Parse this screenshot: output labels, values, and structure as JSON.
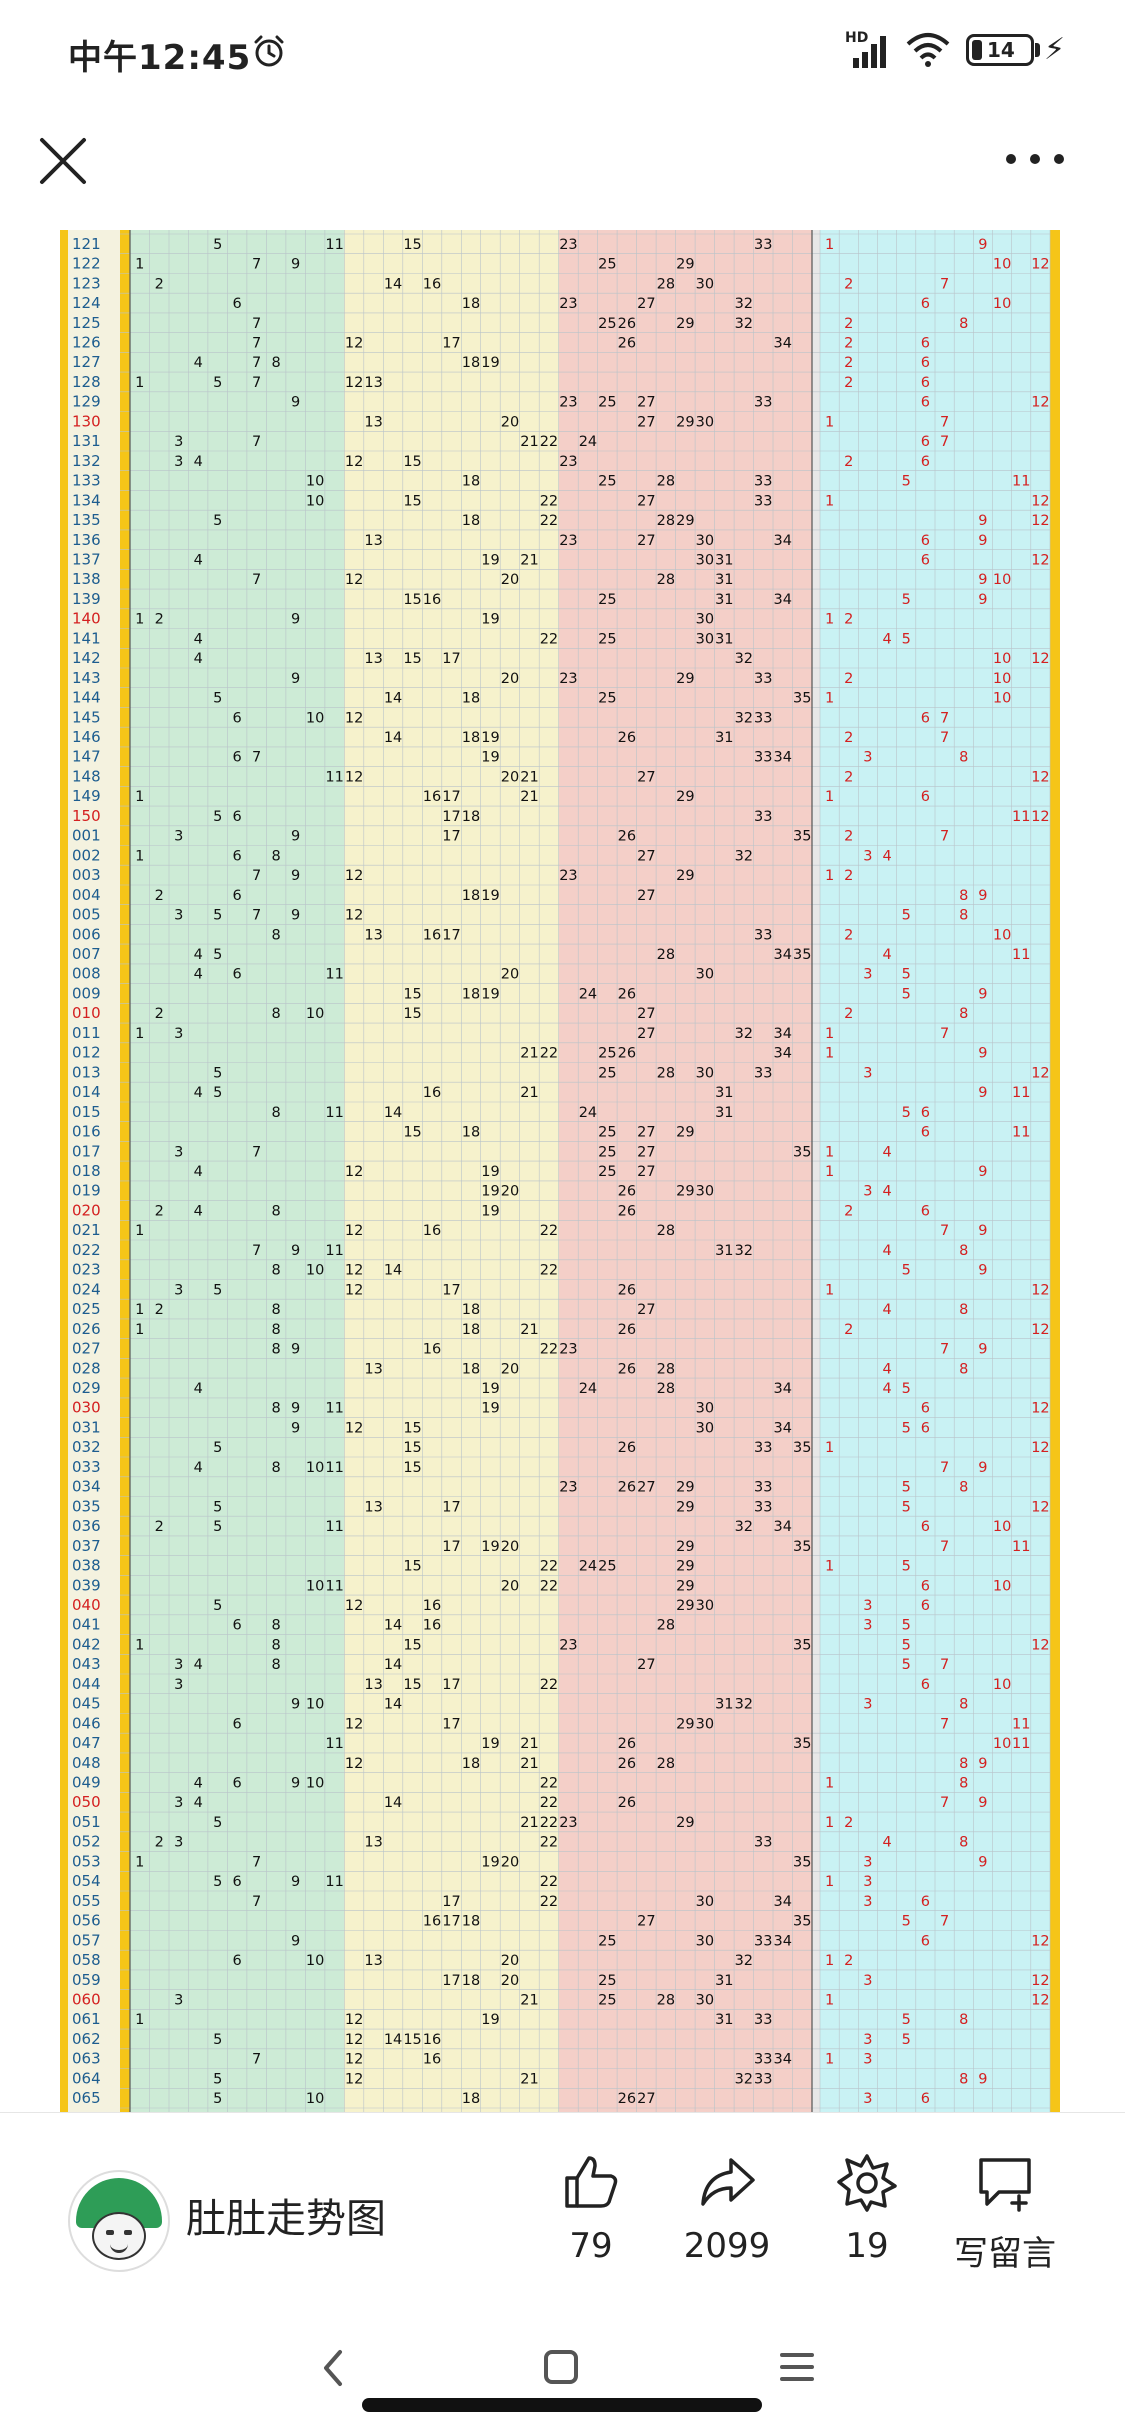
{
  "status_bar": {
    "time": "中午12:45",
    "network_label": "HD",
    "battery_level": "14",
    "icons": [
      "alarm-icon",
      "signal-icon",
      "wifi-icon",
      "battery-icon",
      "charging-icon"
    ]
  },
  "top_bar": {
    "close_icon": "close-icon",
    "more_icon": "more-icon"
  },
  "chart_data": {
    "type": "table",
    "columns": 12,
    "ball_ranges": [
      [
        1,
        11
      ],
      [
        12,
        22
      ],
      [
        23,
        33
      ],
      [
        34,
        35
      ],
      [
        1,
        12
      ]
    ],
    "zone_colors": [
      "#cdebd6",
      "#f6f2cc",
      "#f4cfc8",
      "#c9f2f4"
    ],
    "rows": [
      {
        "issue": "121",
        "front": [
          5,
          11,
          15,
          23,
          33
        ],
        "back": [
          1,
          9
        ]
      },
      {
        "issue": "122",
        "front": [
          1,
          7,
          9,
          25,
          29
        ],
        "back": [
          10,
          12
        ]
      },
      {
        "issue": "123",
        "front": [
          2,
          14,
          16,
          28,
          30
        ],
        "back": [
          2,
          7
        ]
      },
      {
        "issue": "124",
        "front": [
          6,
          18,
          23,
          27,
          32
        ],
        "back": [
          6,
          10
        ]
      },
      {
        "issue": "125",
        "front": [
          7,
          25,
          26,
          29,
          32
        ],
        "back": [
          2,
          8
        ]
      },
      {
        "issue": "126",
        "front": [
          7,
          12,
          17,
          26,
          34
        ],
        "back": [
          2,
          6
        ]
      },
      {
        "issue": "127",
        "front": [
          4,
          7,
          8,
          18,
          19
        ],
        "back": [
          2,
          6
        ]
      },
      {
        "issue": "128",
        "front": [
          1,
          5,
          7,
          12,
          13
        ],
        "back": [
          2,
          6
        ]
      },
      {
        "issue": "129",
        "front": [
          9,
          23,
          25,
          27,
          33
        ],
        "back": [
          6,
          12
        ]
      },
      {
        "issue": "130",
        "front": [
          13,
          20,
          27,
          29,
          30
        ],
        "back": [
          1,
          7
        ]
      },
      {
        "issue": "131",
        "front": [
          3,
          7,
          21,
          22,
          24
        ],
        "back": [
          6,
          7
        ]
      },
      {
        "issue": "132",
        "front": [
          3,
          4,
          12,
          15,
          23
        ],
        "back": [
          2,
          6
        ]
      },
      {
        "issue": "133",
        "front": [
          10,
          18,
          25,
          28,
          33
        ],
        "back": [
          5,
          11
        ]
      },
      {
        "issue": "134",
        "front": [
          10,
          15,
          22,
          27,
          33
        ],
        "back": [
          1,
          12
        ]
      },
      {
        "issue": "135",
        "front": [
          5,
          18,
          22,
          28,
          29
        ],
        "back": [
          9,
          12
        ]
      },
      {
        "issue": "136",
        "front": [
          13,
          23,
          27,
          30,
          34
        ],
        "back": [
          6,
          9
        ]
      },
      {
        "issue": "137",
        "front": [
          4,
          19,
          21,
          30,
          31
        ],
        "back": [
          6,
          12
        ]
      },
      {
        "issue": "138",
        "front": [
          7,
          12,
          20,
          28,
          31
        ],
        "back": [
          9,
          10
        ]
      },
      {
        "issue": "139",
        "front": [
          15,
          16,
          25,
          31,
          34
        ],
        "back": [
          5,
          9
        ]
      },
      {
        "issue": "140",
        "front": [
          1,
          2,
          9,
          19,
          30
        ],
        "back": [
          1,
          2
        ]
      },
      {
        "issue": "141",
        "front": [
          4,
          22,
          25,
          30,
          31
        ],
        "back": [
          4,
          5
        ]
      },
      {
        "issue": "142",
        "front": [
          4,
          13,
          15,
          17,
          32
        ],
        "back": [
          10,
          12
        ]
      },
      {
        "issue": "143",
        "front": [
          9,
          20,
          23,
          29,
          33
        ],
        "back": [
          2,
          10
        ]
      },
      {
        "issue": "144",
        "front": [
          5,
          14,
          18,
          25,
          35
        ],
        "back": [
          1,
          10
        ]
      },
      {
        "issue": "145",
        "front": [
          6,
          10,
          12,
          32,
          33
        ],
        "back": [
          6,
          7
        ]
      },
      {
        "issue": "146",
        "front": [
          14,
          18,
          19,
          26,
          31
        ],
        "back": [
          2,
          7
        ]
      },
      {
        "issue": "147",
        "front": [
          6,
          7,
          19,
          33,
          34
        ],
        "back": [
          3,
          8
        ]
      },
      {
        "issue": "148",
        "front": [
          11,
          12,
          20,
          21,
          27
        ],
        "back": [
          2,
          12
        ]
      },
      {
        "issue": "149",
        "front": [
          1,
          16,
          17,
          21,
          29
        ],
        "back": [
          1,
          6
        ]
      },
      {
        "issue": "150",
        "front": [
          5,
          6,
          17,
          18,
          33
        ],
        "back": [
          11,
          12
        ]
      },
      {
        "issue": "001",
        "front": [
          3,
          9,
          17,
          26,
          35
        ],
        "back": [
          2,
          7
        ]
      },
      {
        "issue": "002",
        "front": [
          1,
          6,
          8,
          27,
          32
        ],
        "back": [
          3,
          4
        ]
      },
      {
        "issue": "003",
        "front": [
          7,
          9,
          12,
          23,
          29
        ],
        "back": [
          1,
          2
        ]
      },
      {
        "issue": "004",
        "front": [
          2,
          6,
          18,
          19,
          27
        ],
        "back": [
          8,
          9
        ]
      },
      {
        "issue": "005",
        "front": [
          3,
          5,
          7,
          9,
          12
        ],
        "back": [
          5,
          8
        ]
      },
      {
        "issue": "006",
        "front": [
          8,
          13,
          16,
          17,
          33
        ],
        "back": [
          2,
          10
        ]
      },
      {
        "issue": "007",
        "front": [
          4,
          5,
          28,
          34,
          35
        ],
        "back": [
          4,
          11
        ]
      },
      {
        "issue": "008",
        "front": [
          4,
          6,
          11,
          20,
          30
        ],
        "back": [
          3,
          5
        ]
      },
      {
        "issue": "009",
        "front": [
          15,
          18,
          19,
          24,
          26
        ],
        "back": [
          5,
          9
        ]
      },
      {
        "issue": "010",
        "front": [
          2,
          8,
          10,
          15,
          27
        ],
        "back": [
          2,
          8
        ]
      },
      {
        "issue": "011",
        "front": [
          1,
          3,
          27,
          32,
          34
        ],
        "back": [
          1,
          7
        ]
      },
      {
        "issue": "012",
        "front": [
          21,
          22,
          25,
          26,
          34
        ],
        "back": [
          1,
          9
        ]
      },
      {
        "issue": "013",
        "front": [
          5,
          25,
          28,
          30,
          33
        ],
        "back": [
          3,
          12
        ]
      },
      {
        "issue": "014",
        "front": [
          4,
          5,
          16,
          21,
          31
        ],
        "back": [
          9,
          11
        ]
      },
      {
        "issue": "015",
        "front": [
          8,
          11,
          14,
          24,
          31
        ],
        "back": [
          5,
          6
        ]
      },
      {
        "issue": "016",
        "front": [
          15,
          18,
          25,
          27,
          29
        ],
        "back": [
          6,
          11
        ]
      },
      {
        "issue": "017",
        "front": [
          3,
          7,
          25,
          27,
          35
        ],
        "back": [
          1,
          4
        ]
      },
      {
        "issue": "018",
        "front": [
          4,
          12,
          19,
          25,
          27
        ],
        "back": [
          1,
          9
        ]
      },
      {
        "issue": "019",
        "front": [
          19,
          20,
          26,
          29,
          30
        ],
        "back": [
          3,
          4
        ]
      },
      {
        "issue": "020",
        "front": [
          2,
          4,
          8,
          19,
          26
        ],
        "back": [
          2,
          6
        ]
      },
      {
        "issue": "021",
        "front": [
          1,
          12,
          16,
          22,
          28
        ],
        "back": [
          7,
          9
        ]
      },
      {
        "issue": "022",
        "front": [
          7,
          9,
          11,
          31,
          32
        ],
        "back": [
          4,
          8
        ]
      },
      {
        "issue": "023",
        "front": [
          8,
          10,
          12,
          14,
          22
        ],
        "back": [
          5,
          9
        ]
      },
      {
        "issue": "024",
        "front": [
          3,
          5,
          12,
          17,
          26
        ],
        "back": [
          1,
          12
        ]
      },
      {
        "issue": "025",
        "front": [
          1,
          2,
          8,
          18,
          27
        ],
        "back": [
          4,
          8
        ]
      },
      {
        "issue": "026",
        "front": [
          1,
          8,
          18,
          21,
          26
        ],
        "back": [
          2,
          12
        ]
      },
      {
        "issue": "027",
        "front": [
          8,
          9,
          16,
          22,
          23
        ],
        "back": [
          7,
          9
        ]
      },
      {
        "issue": "028",
        "front": [
          13,
          18,
          20,
          26,
          28
        ],
        "back": [
          4,
          8
        ]
      },
      {
        "issue": "029",
        "front": [
          4,
          19,
          24,
          28,
          34
        ],
        "back": [
          4,
          5
        ]
      },
      {
        "issue": "030",
        "front": [
          8,
          9,
          11,
          19,
          30
        ],
        "back": [
          6,
          12
        ]
      },
      {
        "issue": "031",
        "front": [
          9,
          12,
          15,
          30,
          34
        ],
        "back": [
          5,
          6
        ]
      },
      {
        "issue": "032",
        "front": [
          5,
          15,
          26,
          33,
          35
        ],
        "back": [
          1,
          12
        ]
      },
      {
        "issue": "033",
        "front": [
          4,
          8,
          10,
          11,
          15
        ],
        "back": [
          7,
          9
        ]
      },
      {
        "issue": "034",
        "front": [
          23,
          26,
          27,
          29,
          33
        ],
        "back": [
          5,
          8
        ]
      },
      {
        "issue": "035",
        "front": [
          5,
          13,
          17,
          29,
          33
        ],
        "back": [
          5,
          12
        ]
      },
      {
        "issue": "036",
        "front": [
          2,
          5,
          11,
          32,
          34
        ],
        "back": [
          6,
          10
        ]
      },
      {
        "issue": "037",
        "front": [
          17,
          19,
          20,
          29,
          35
        ],
        "back": [
          7,
          11
        ]
      },
      {
        "issue": "038",
        "front": [
          15,
          22,
          24,
          25,
          29
        ],
        "back": [
          1,
          5
        ]
      },
      {
        "issue": "039",
        "front": [
          10,
          11,
          20,
          22,
          29
        ],
        "back": [
          6,
          10
        ]
      },
      {
        "issue": "040",
        "front": [
          5,
          12,
          16,
          29,
          30
        ],
        "back": [
          3,
          6
        ]
      },
      {
        "issue": "041",
        "front": [
          6,
          8,
          14,
          16,
          28
        ],
        "back": [
          3,
          5
        ]
      },
      {
        "issue": "042",
        "front": [
          1,
          8,
          15,
          23,
          35
        ],
        "back": [
          5,
          12
        ]
      },
      {
        "issue": "043",
        "front": [
          3,
          4,
          8,
          14,
          27
        ],
        "back": [
          5,
          7
        ]
      },
      {
        "issue": "044",
        "front": [
          3,
          13,
          15,
          17,
          22
        ],
        "back": [
          6,
          10
        ]
      },
      {
        "issue": "045",
        "front": [
          9,
          10,
          14,
          31,
          32
        ],
        "back": [
          3,
          8
        ]
      },
      {
        "issue": "046",
        "front": [
          6,
          12,
          17,
          29,
          30
        ],
        "back": [
          7,
          11
        ]
      },
      {
        "issue": "047",
        "front": [
          11,
          19,
          21,
          26,
          35
        ],
        "back": [
          10,
          11
        ]
      },
      {
        "issue": "048",
        "front": [
          12,
          18,
          21,
          26,
          28
        ],
        "back": [
          8,
          9
        ]
      },
      {
        "issue": "049",
        "front": [
          4,
          6,
          9,
          10,
          22
        ],
        "back": [
          1,
          8
        ]
      },
      {
        "issue": "050",
        "front": [
          3,
          4,
          14,
          22,
          26
        ],
        "back": [
          7,
          9
        ]
      },
      {
        "issue": "051",
        "front": [
          5,
          21,
          22,
          23,
          29
        ],
        "back": [
          1,
          2
        ]
      },
      {
        "issue": "052",
        "front": [
          2,
          3,
          13,
          22,
          33
        ],
        "back": [
          4,
          8
        ]
      },
      {
        "issue": "053",
        "front": [
          1,
          7,
          19,
          20,
          35
        ],
        "back": [
          3,
          9
        ]
      },
      {
        "issue": "054",
        "front": [
          5,
          6,
          9,
          11,
          22
        ],
        "back": [
          1,
          3
        ]
      },
      {
        "issue": "055",
        "front": [
          7,
          17,
          22,
          30,
          34
        ],
        "back": [
          3,
          6
        ]
      },
      {
        "issue": "056",
        "front": [
          16,
          17,
          18,
          27,
          35
        ],
        "back": [
          5,
          7
        ]
      },
      {
        "issue": "057",
        "front": [
          9,
          25,
          30,
          33,
          34
        ],
        "back": [
          6,
          12
        ]
      },
      {
        "issue": "058",
        "front": [
          6,
          10,
          13,
          20,
          32
        ],
        "back": [
          1,
          2
        ]
      },
      {
        "issue": "059",
        "front": [
          17,
          18,
          20,
          25,
          31
        ],
        "back": [
          3,
          12
        ]
      },
      {
        "issue": "060",
        "front": [
          3,
          21,
          25,
          28,
          30
        ],
        "back": [
          1,
          12
        ]
      },
      {
        "issue": "061",
        "front": [
          1,
          12,
          19,
          31,
          33
        ],
        "back": [
          5,
          8
        ]
      },
      {
        "issue": "062",
        "front": [
          5,
          12,
          14,
          15,
          16
        ],
        "back": [
          3,
          5
        ]
      },
      {
        "issue": "063",
        "front": [
          7,
          12,
          16,
          33,
          34
        ],
        "back": [
          1,
          3
        ]
      },
      {
        "issue": "064",
        "front": [
          5,
          12,
          21,
          32,
          33
        ],
        "back": [
          8,
          9
        ]
      },
      {
        "issue": "065",
        "front": [
          5,
          10,
          18,
          26,
          27
        ],
        "back": [
          3,
          6
        ]
      }
    ]
  },
  "bottom_bar": {
    "author_name": "肚肚走势图",
    "likes": "79",
    "shares": "2099",
    "favorites": "19",
    "comment_label": "写留言"
  }
}
